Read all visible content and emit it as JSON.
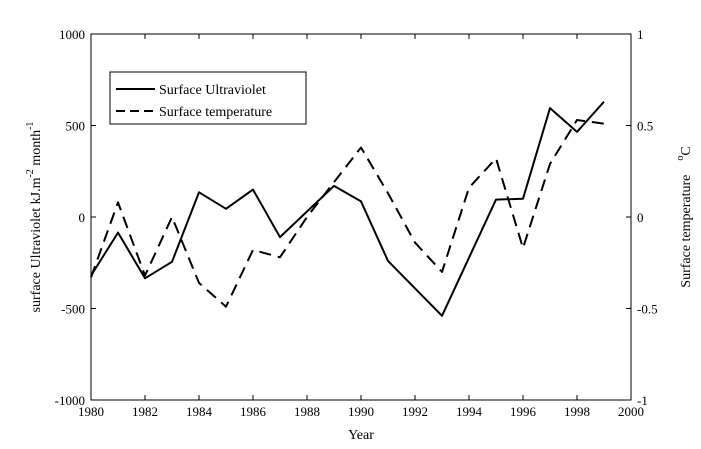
{
  "chart_data": {
    "type": "line",
    "xlabel": "Year",
    "ylabel_left": "surface Ultraviolet   kJ.m",
    "ylabel_left_sup1": "-2",
    "ylabel_left_mid": " month",
    "ylabel_left_sup2": "-1",
    "ylabel_right": "Surface temperature",
    "ylabel_right_unit": "C",
    "ylabel_right_unit_sup": "o",
    "xlim": [
      1980,
      2000
    ],
    "ylim_left": [
      -1000,
      1000
    ],
    "ylim_right": [
      -1,
      1
    ],
    "grid": false,
    "legend_position": "top-left",
    "x_ticks": [
      1980,
      1982,
      1984,
      1986,
      1988,
      1990,
      1992,
      1994,
      1996,
      1998,
      2000
    ],
    "y_ticks_left": [
      -1000,
      -500,
      0,
      500,
      1000
    ],
    "y_ticks_right": [
      -1,
      -0.5,
      0,
      0.5,
      1
    ],
    "x_tick_labels": [
      "1980",
      "1982",
      "1984",
      "1986",
      "1988",
      "1990",
      "1992",
      "1994",
      "1996",
      "1998",
      "2000"
    ],
    "y_tick_labels_left": [
      "-1000",
      "-500",
      "0",
      "500",
      "1000"
    ],
    "y_tick_labels_right": [
      "-1",
      "-0.5",
      "0",
      "0.5",
      "1"
    ],
    "series": [
      {
        "name": "Surface Ultraviolet",
        "axis": "left",
        "style": "solid",
        "color": "#000000",
        "x": [
          1980,
          1981,
          1982,
          1983,
          1984,
          1985,
          1986,
          1987,
          1988,
          1989,
          1990,
          1991,
          1993,
          1995,
          1996,
          1997,
          1998,
          1999
        ],
        "y": [
          -320,
          -85,
          -335,
          -245,
          135,
          45,
          150,
          -110,
          30,
          170,
          85,
          -240,
          -540,
          95,
          100,
          595,
          465,
          630
        ]
      },
      {
        "name": "Surface temperature",
        "axis": "right",
        "style": "dashed",
        "color": "#000000",
        "x": [
          1980,
          1981,
          1982,
          1983,
          1984,
          1985,
          1986,
          1987,
          1988,
          1989,
          1990,
          1991,
          1992,
          1993,
          1994,
          1995,
          1996,
          1997,
          1998,
          1999
        ],
        "y": [
          -0.33,
          0.08,
          -0.32,
          0.0,
          -0.36,
          -0.49,
          -0.18,
          -0.22,
          0.0,
          0.19,
          0.38,
          0.13,
          -0.14,
          -0.3,
          0.16,
          0.32,
          -0.17,
          0.29,
          0.53,
          0.51
        ]
      }
    ]
  }
}
